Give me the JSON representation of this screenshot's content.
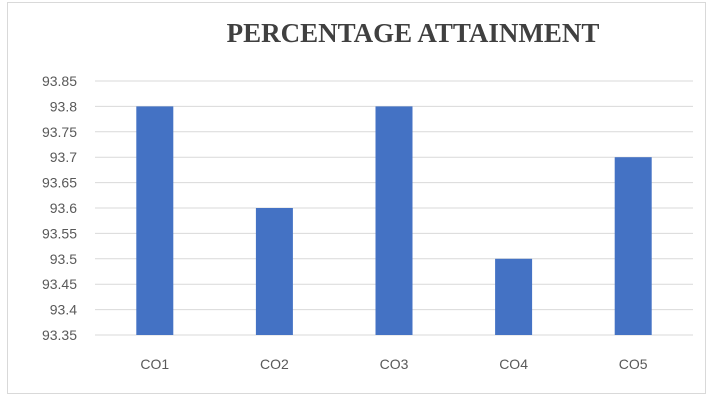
{
  "chart_data": {
    "type": "bar",
    "title": "PERCENTAGE ATTAINMENT",
    "categories": [
      "CO1",
      "CO2",
      "CO3",
      "CO4",
      "CO5"
    ],
    "values": [
      93.8,
      93.6,
      93.8,
      93.5,
      93.7
    ],
    "ylim": [
      93.35,
      93.85
    ],
    "yticks": [
      "93.85",
      "93.8",
      "93.75",
      "93.7",
      "93.65",
      "93.6",
      "93.55",
      "93.5",
      "93.45",
      "93.4",
      "93.35"
    ],
    "grid": true,
    "legend": "none",
    "bar_color": "#4472c4",
    "gridline_color": "#d9d9d9"
  }
}
